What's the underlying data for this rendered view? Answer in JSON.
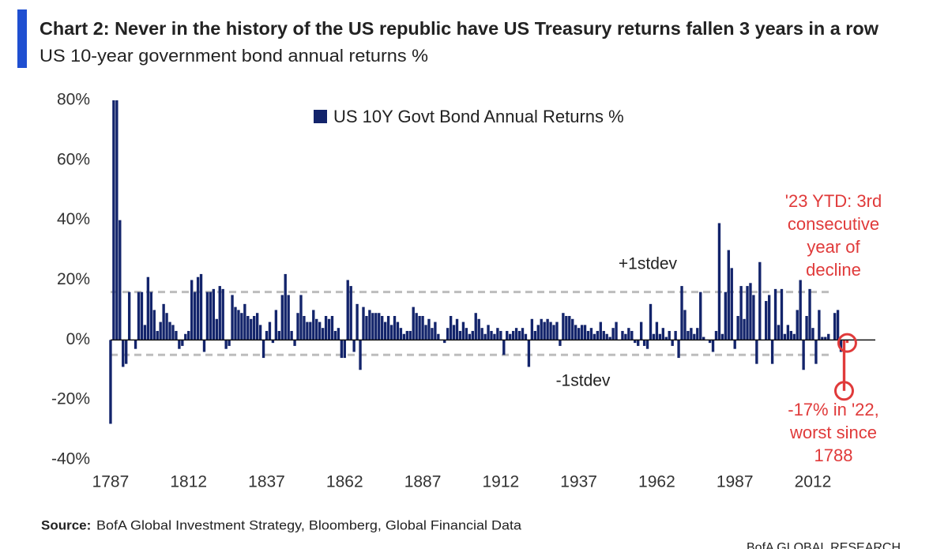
{
  "chart_data": {
    "type": "bar",
    "title": "Chart 2: Never in the history of the US republic have US Treasury returns fallen 3 years in a row",
    "subtitle": "US 10-year government bond annual returns %",
    "source_label": "Source:",
    "source": "BofA Global Investment Strategy, Bloomberg, Global Financial Data",
    "footer": "BofA GLOBAL RESEARCH",
    "x": [
      1787,
      1788,
      1789,
      1790,
      1791,
      1792,
      1793,
      1794,
      1795,
      1796,
      1797,
      1798,
      1799,
      1800,
      1801,
      1802,
      1803,
      1804,
      1805,
      1806,
      1807,
      1808,
      1809,
      1810,
      1811,
      1812,
      1813,
      1814,
      1815,
      1816,
      1817,
      1818,
      1819,
      1820,
      1821,
      1822,
      1823,
      1824,
      1825,
      1826,
      1827,
      1828,
      1829,
      1830,
      1831,
      1832,
      1833,
      1834,
      1835,
      1836,
      1837,
      1838,
      1839,
      1840,
      1841,
      1842,
      1843,
      1844,
      1845,
      1846,
      1847,
      1848,
      1849,
      1850,
      1851,
      1852,
      1853,
      1854,
      1855,
      1856,
      1857,
      1858,
      1859,
      1860,
      1861,
      1862,
      1863,
      1864,
      1865,
      1866,
      1867,
      1868,
      1869,
      1870,
      1871,
      1872,
      1873,
      1874,
      1875,
      1876,
      1877,
      1878,
      1879,
      1880,
      1881,
      1882,
      1883,
      1884,
      1885,
      1886,
      1887,
      1888,
      1889,
      1890,
      1891,
      1892,
      1893,
      1894,
      1895,
      1896,
      1897,
      1898,
      1899,
      1900,
      1901,
      1902,
      1903,
      1904,
      1905,
      1906,
      1907,
      1908,
      1909,
      1910,
      1911,
      1912,
      1913,
      1914,
      1915,
      1916,
      1917,
      1918,
      1919,
      1920,
      1921,
      1922,
      1923,
      1924,
      1925,
      1926,
      1927,
      1928,
      1929,
      1930,
      1931,
      1932,
      1933,
      1934,
      1935,
      1936,
      1937,
      1938,
      1939,
      1940,
      1941,
      1942,
      1943,
      1944,
      1945,
      1946,
      1947,
      1948,
      1949,
      1950,
      1951,
      1952,
      1953,
      1954,
      1955,
      1956,
      1957,
      1958,
      1959,
      1960,
      1961,
      1962,
      1963,
      1964,
      1965,
      1966,
      1967,
      1968,
      1969,
      1970,
      1971,
      1972,
      1973,
      1974,
      1975,
      1976,
      1977,
      1978,
      1979,
      1980,
      1981,
      1982,
      1983,
      1984,
      1985,
      1986,
      1987,
      1988,
      1989,
      1990,
      1991,
      1992,
      1993,
      1994,
      1995,
      1996,
      1997,
      1998,
      1999,
      2000,
      2001,
      2002,
      2003,
      2004,
      2005,
      2006,
      2007,
      2008,
      2009,
      2010,
      2011,
      2012,
      2013,
      2014,
      2015,
      2016,
      2017,
      2018,
      2019,
      2020,
      2021,
      2022,
      2023
    ],
    "series": [
      {
        "name": "US 10Y Govt Bond Annual Returns %",
        "color": "#13246b",
        "values": [
          -28,
          80,
          80,
          40,
          -9,
          -8,
          16,
          0,
          -3,
          16,
          16,
          5,
          21,
          16,
          10,
          3,
          6,
          12,
          9,
          6,
          5,
          3,
          -3,
          -2,
          2,
          3,
          20,
          16,
          21,
          22,
          -4,
          16,
          16,
          17,
          7,
          18,
          17,
          -3,
          -2,
          15,
          11,
          10,
          9,
          12,
          8,
          7,
          8,
          9,
          5,
          -6,
          3,
          6,
          -1,
          10,
          3,
          15,
          22,
          15,
          3,
          -2,
          9,
          15,
          8,
          6,
          6,
          10,
          7,
          6,
          4,
          8,
          7,
          8,
          3,
          4,
          -6,
          -6,
          20,
          18,
          -4,
          12,
          -10,
          11,
          8,
          10,
          9,
          9,
          9,
          8,
          6,
          8,
          5,
          8,
          6,
          4,
          2,
          3,
          3,
          11,
          9,
          8,
          8,
          5,
          7,
          4,
          6,
          2,
          0,
          -1,
          4,
          8,
          5,
          7,
          3,
          6,
          4,
          2,
          3,
          9,
          7,
          4,
          2,
          5,
          3,
          2,
          4,
          3,
          -5,
          3,
          2,
          3,
          4,
          3,
          4,
          2,
          -9,
          7,
          3,
          5,
          7,
          6,
          7,
          6,
          5,
          6,
          -2,
          9,
          8,
          8,
          7,
          5,
          4,
          5,
          5,
          3,
          4,
          2,
          3,
          6,
          3,
          2,
          1,
          4,
          6,
          0,
          3,
          2,
          4,
          3,
          -1,
          -2,
          6,
          -2,
          -3,
          12,
          2,
          6,
          2,
          4,
          1,
          3,
          -2,
          3,
          -6,
          18,
          10,
          3,
          4,
          2,
          4,
          16,
          1,
          0,
          -1,
          -4,
          3,
          39,
          2,
          16,
          30,
          24,
          -3,
          8,
          18,
          7,
          18,
          19,
          15,
          -8,
          26,
          0,
          13,
          15,
          -8,
          17,
          5,
          17,
          2,
          5,
          3,
          2,
          10,
          20,
          -10,
          8,
          17,
          4,
          -8,
          10,
          1,
          1,
          2,
          0,
          9,
          10,
          -4,
          -17,
          -1
        ]
      }
    ],
    "xlim": [
      1786,
      2032
    ],
    "xticks": [
      1787,
      1812,
      1837,
      1862,
      1887,
      1912,
      1937,
      1962,
      1987,
      2012
    ],
    "ylim": [
      -40,
      80
    ],
    "yticks": [
      {
        "value": -40,
        "label": "-40%"
      },
      {
        "value": -20,
        "label": "-20%"
      },
      {
        "value": 0,
        "label": "0%"
      },
      {
        "value": 20,
        "label": "20%"
      },
      {
        "value": 40,
        "label": "40%"
      },
      {
        "value": 60,
        "label": "60%"
      },
      {
        "value": 80,
        "label": "80%"
      }
    ],
    "grid": false,
    "reference_lines": [
      {
        "label": "+1stdev",
        "value": 16,
        "color": "#bdbdbd"
      },
      {
        "label": "-1stdev",
        "value": -5,
        "color": "#bdbdbd"
      }
    ],
    "annotations": [
      {
        "lines": [
          "'23 YTD: 3rd",
          "consecutive",
          "year of",
          "decline"
        ],
        "x": 2023,
        "color": "#e03a3a"
      },
      {
        "lines": [
          "-17% in '22,",
          "worst since",
          "1788"
        ],
        "x": 2022,
        "color": "#e03a3a"
      }
    ],
    "legend": "top"
  }
}
